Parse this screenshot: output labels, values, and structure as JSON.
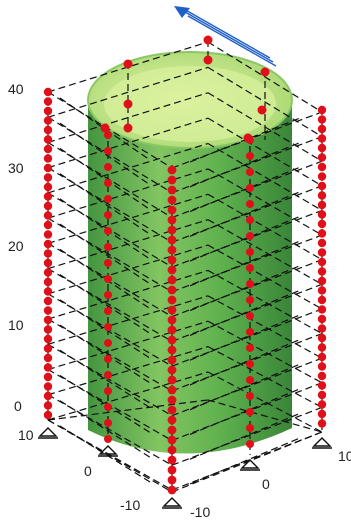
{
  "figure": {
    "vertical_axis_ticks": [
      "40",
      "30",
      "20",
      "10",
      "0"
    ],
    "left_depth_ticks": [
      "10",
      "0",
      "-10"
    ],
    "right_depth_ticks": [
      "-10",
      "0",
      "10"
    ],
    "colors": {
      "cylinder_dark": "#3f9a3a",
      "cylinder_light": "#b9e07a",
      "cylinder_inner": "#d4ee93",
      "member": "#111111",
      "node": "#e0101a",
      "load_arrow": "#1f5fc8"
    },
    "icons": [
      "support-icon",
      "load-arrow-icon"
    ]
  }
}
